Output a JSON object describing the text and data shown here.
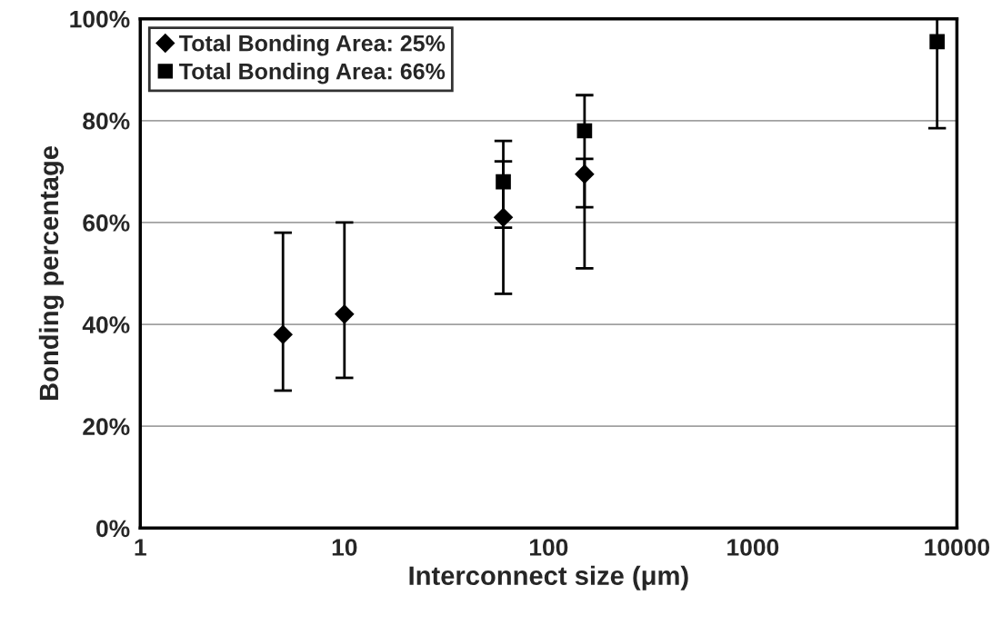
{
  "chart_data": {
    "type": "scatter",
    "xlabel": "Interconnect size (μm)",
    "ylabel": "Bonding percentage",
    "log": "x",
    "xlim": [
      1,
      10000
    ],
    "xticks": [
      1,
      10,
      100,
      1000,
      10000
    ],
    "ylim": [
      0,
      100
    ],
    "yticks": [
      {
        "value": 0,
        "label": "0%"
      },
      {
        "value": 20,
        "label": "20%"
      },
      {
        "value": 40,
        "label": "40%"
      },
      {
        "value": 60,
        "label": "60%"
      },
      {
        "value": 80,
        "label": "80%"
      },
      {
        "value": 100,
        "label": "100%"
      }
    ],
    "grid": "y",
    "legend": "top left",
    "series": [
      {
        "name": "Total Bonding Area: 25%",
        "color": "#000000",
        "marker": "diamond",
        "x": [
          5,
          10,
          60,
          150
        ],
        "values": [
          38,
          42,
          61,
          69.5
        ],
        "errors": [
          [
            27,
            58
          ],
          [
            29.5,
            60
          ],
          [
            46,
            72
          ],
          [
            51,
            72.5
          ]
        ]
      },
      {
        "name": "Total Bonding Area: 66%",
        "color": "#000000",
        "marker": "square",
        "x": [
          60,
          150,
          8000
        ],
        "values": [
          68,
          78,
          95.5
        ],
        "errors": [
          [
            59,
            76
          ],
          [
            63,
            85
          ],
          [
            78.5,
            100
          ]
        ]
      }
    ]
  }
}
